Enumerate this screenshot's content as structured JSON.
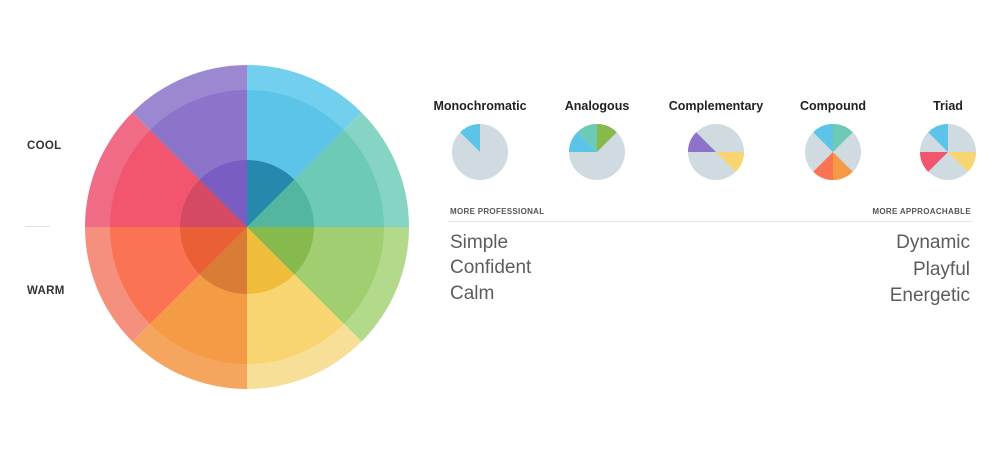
{
  "side_labels": {
    "cool": "COOL",
    "warm": "WARM"
  },
  "wheel": {
    "segments": [
      {
        "name": "blue",
        "outer": "#72cfee",
        "middle": "#5bc4e8",
        "inner": "#2788ad"
      },
      {
        "name": "teal",
        "outer": "#86d5c4",
        "middle": "#6dcbb5",
        "inner": "#52b6a0"
      },
      {
        "name": "green",
        "outer": "#b3d98a",
        "middle": "#a2ce72",
        "inner": "#86ba4c"
      },
      {
        "name": "yellow",
        "outer": "#f8df98",
        "middle": "#f9d571",
        "inner": "#f0bc3b"
      },
      {
        "name": "light-orange",
        "outer": "#f6a55f",
        "middle": "#f59a45",
        "inner": "#d97c36"
      },
      {
        "name": "orange-red",
        "outer": "#f4907d",
        "middle": "#fa7352",
        "inner": "#ea5f35"
      },
      {
        "name": "red",
        "outer": "#f06b85",
        "middle": "#f2566f",
        "inner": "#d44a65"
      },
      {
        "name": "purple",
        "outer": "#9b88d1",
        "middle": "#8b74ca",
        "inner": "#7a5dc2"
      }
    ]
  },
  "schemes": [
    {
      "title": "Monochromatic",
      "colors": [
        "#5bc4e8"
      ]
    },
    {
      "title": "Analogous",
      "colors": [
        "#5bc4e8",
        "#6dcbb5",
        "#86ba4c"
      ]
    },
    {
      "title": "Complementary",
      "colors": [
        "#8b74ca",
        "#f9d571"
      ]
    },
    {
      "title": "Compound",
      "colors": [
        "#5bc4e8",
        "#6dcbb5",
        "#f59a45",
        "#fa7352"
      ]
    },
    {
      "title": "Triad",
      "colors": [
        "#5bc4e8",
        "#f9d571",
        "#f2566f"
      ]
    }
  ],
  "scale": {
    "left_label": "MORE PROFESSIONAL",
    "right_label": "MORE  APPROACHABLE",
    "left_words": [
      "Simple",
      "Confident",
      "Calm"
    ],
    "right_words": [
      "Dynamic",
      "Playful",
      "Energetic"
    ]
  },
  "colors": {
    "mini_base": "#cfdbe0"
  }
}
